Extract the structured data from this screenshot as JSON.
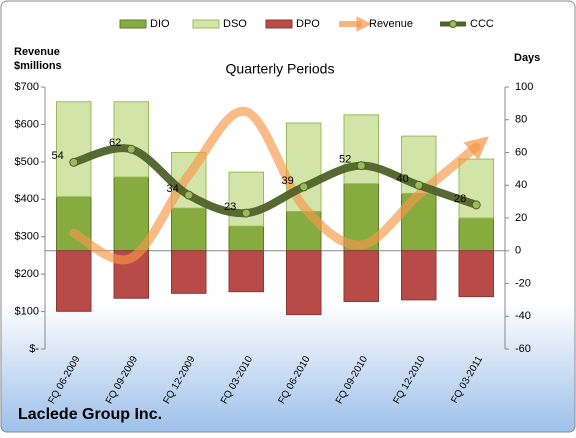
{
  "chart_data": {
    "type": "combo",
    "title": "Quarterly Periods",
    "ylabel_lines": [
      "Revenue",
      "$millions"
    ],
    "y2label": "Days",
    "footer": "Laclede Group Inc.",
    "categories": [
      "FQ 06-2009",
      "FQ 09-2009",
      "FQ 12-2009",
      "FQ 03-2010",
      "FQ 06-2010",
      "FQ 09-2010",
      "FQ 12-2010",
      "FQ 03-2011"
    ],
    "ylim": [
      0,
      700
    ],
    "yticks": [
      {
        "value": 0,
        "label": "$-"
      },
      {
        "value": 100,
        "label": "$100"
      },
      {
        "value": 200,
        "label": "$200"
      },
      {
        "value": 300,
        "label": "$300"
      },
      {
        "value": 400,
        "label": "$400"
      },
      {
        "value": 500,
        "label": "$500"
      },
      {
        "value": 600,
        "label": "$600"
      },
      {
        "value": 700,
        "label": "$700"
      }
    ],
    "y2lim": [
      -60,
      100
    ],
    "y2ticks": [
      -60,
      -40,
      -20,
      0,
      20,
      40,
      60,
      80,
      100
    ],
    "legend": "top",
    "series": [
      {
        "name": "DIO",
        "type": "bar",
        "axis": "y2",
        "color": "#86ab3f",
        "values": [
          33,
          45,
          26,
          15,
          24,
          41,
          35,
          20
        ]
      },
      {
        "name": "DSO",
        "type": "bar",
        "axis": "y2",
        "color": "#d3e4a8",
        "values": [
          58,
          46,
          34,
          33,
          54,
          42,
          35,
          36
        ]
      },
      {
        "name": "DPO",
        "type": "bar",
        "axis": "y2",
        "color": "#b84b48",
        "values": [
          -37,
          -29,
          -26,
          -25,
          -39,
          -31,
          -30,
          -28
        ]
      },
      {
        "name": "Revenue",
        "type": "line",
        "axis": "y",
        "color": "#f79646",
        "values": [
          310,
          243,
          465,
          634,
          380,
          278,
          412,
          540
        ]
      },
      {
        "name": "CCC",
        "type": "line",
        "axis": "y2",
        "color": "#4f6228",
        "values": [
          54,
          62,
          34,
          23,
          39,
          52,
          40,
          28
        ]
      }
    ]
  }
}
